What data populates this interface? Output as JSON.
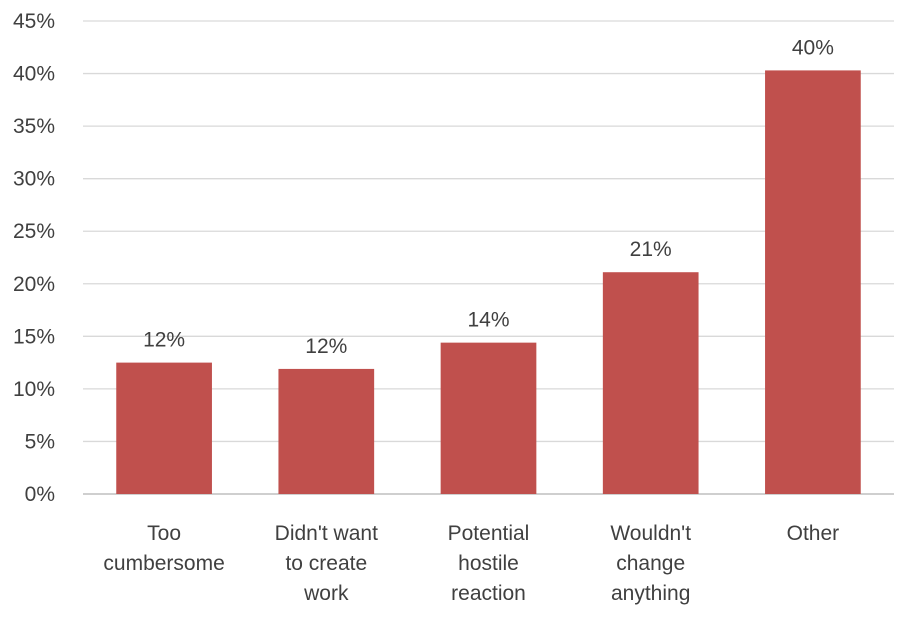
{
  "chart_data": {
    "type": "bar",
    "title": "",
    "xlabel": "",
    "ylabel": "",
    "categories": [
      [
        "Too",
        "cumbersome"
      ],
      [
        "Didn't want",
        "to create",
        "work"
      ],
      [
        "Potential",
        "hostile",
        "reaction"
      ],
      [
        "Wouldn't",
        "change",
        "anything"
      ],
      [
        "Other"
      ]
    ],
    "values": [
      12.5,
      11.9,
      14.4,
      21.1,
      40.3
    ],
    "data_labels": [
      "12%",
      "12%",
      "14%",
      "21%",
      "40%"
    ],
    "ylim": [
      0,
      45
    ],
    "yticks": [
      0,
      5,
      10,
      15,
      20,
      25,
      30,
      35,
      40,
      45
    ],
    "ytick_labels": [
      "0%",
      "5%",
      "10%",
      "15%",
      "20%",
      "25%",
      "30%",
      "35%",
      "40%",
      "45%"
    ],
    "grid": true,
    "legend": "none",
    "bar_color": "#c0504d"
  }
}
